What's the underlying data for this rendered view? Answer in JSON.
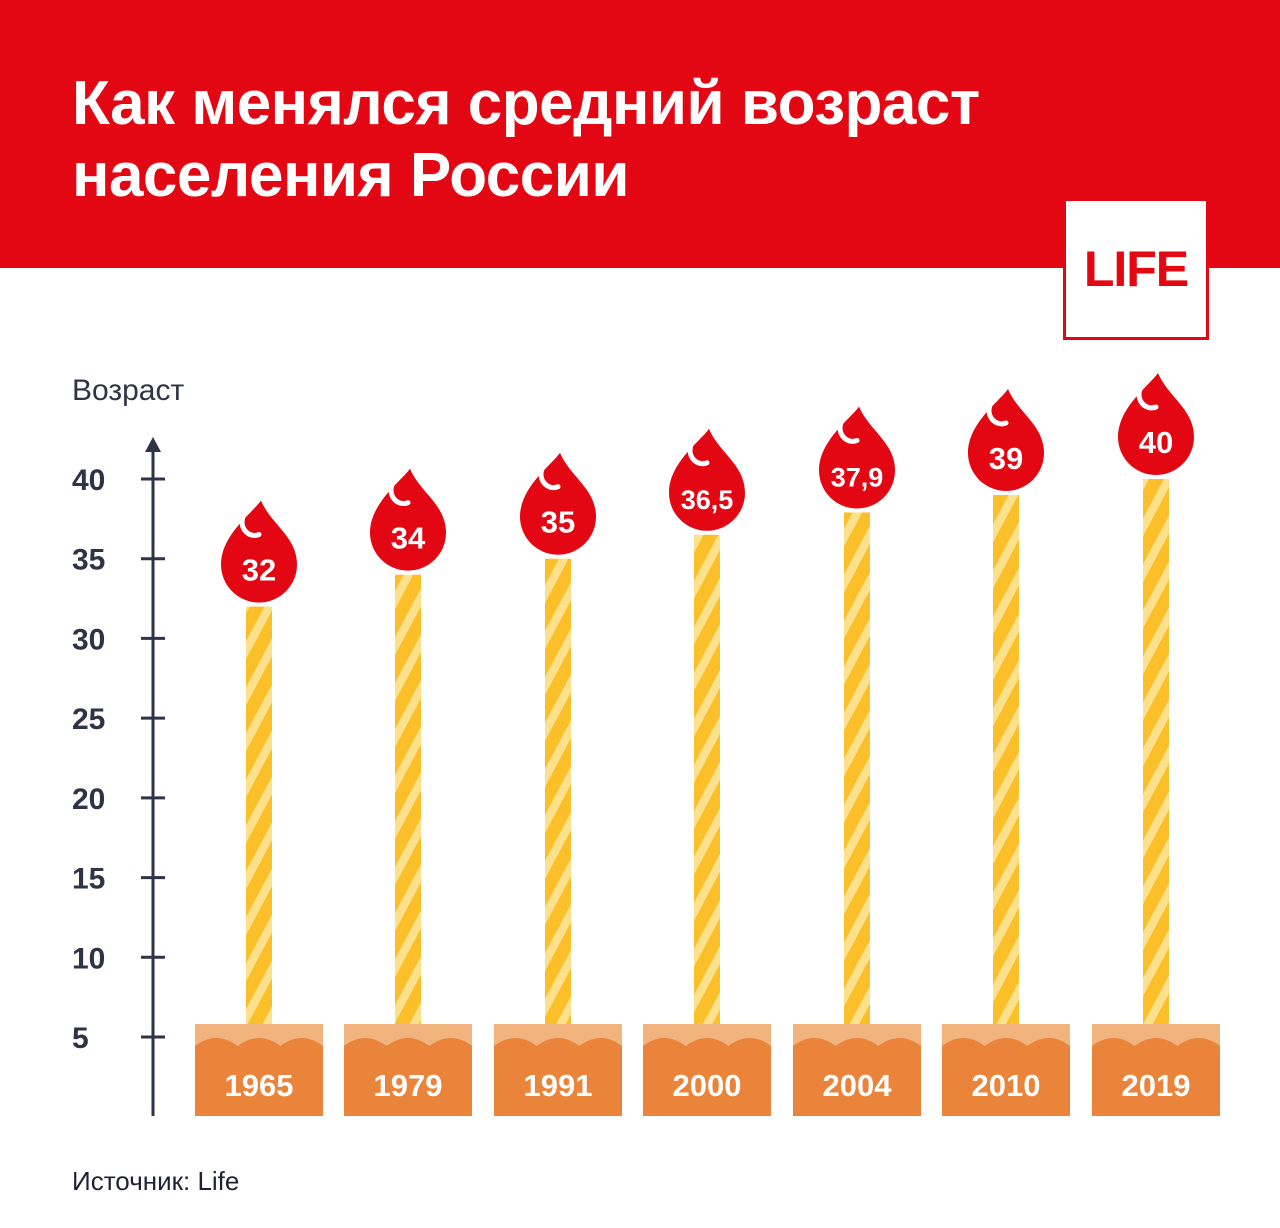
{
  "header": {
    "title_line1": "Как менялся средний возраст",
    "title_line2": "населения России"
  },
  "logo": {
    "text": "LIFE"
  },
  "source": "Источник: Life",
  "colors": {
    "header_red": "#e30613",
    "candle": "#fbbf2a",
    "candle_stripe": "#fde08b",
    "base": "#e9843a",
    "base_top": "#f2b47f",
    "axis": "#2e3345"
  },
  "chart_data": {
    "type": "bar",
    "ylabel": "Возраст",
    "ylim": [
      0,
      42
    ],
    "yticks": [
      5,
      10,
      15,
      20,
      25,
      30,
      35,
      40
    ],
    "categories": [
      "1965",
      "1979",
      "1991",
      "2000",
      "2004",
      "2010",
      "2019"
    ],
    "values": [
      32,
      34,
      35,
      36.5,
      37.9,
      39,
      40
    ],
    "value_labels": [
      "32",
      "34",
      "35",
      "36,5",
      "37,9",
      "39",
      "40"
    ]
  }
}
